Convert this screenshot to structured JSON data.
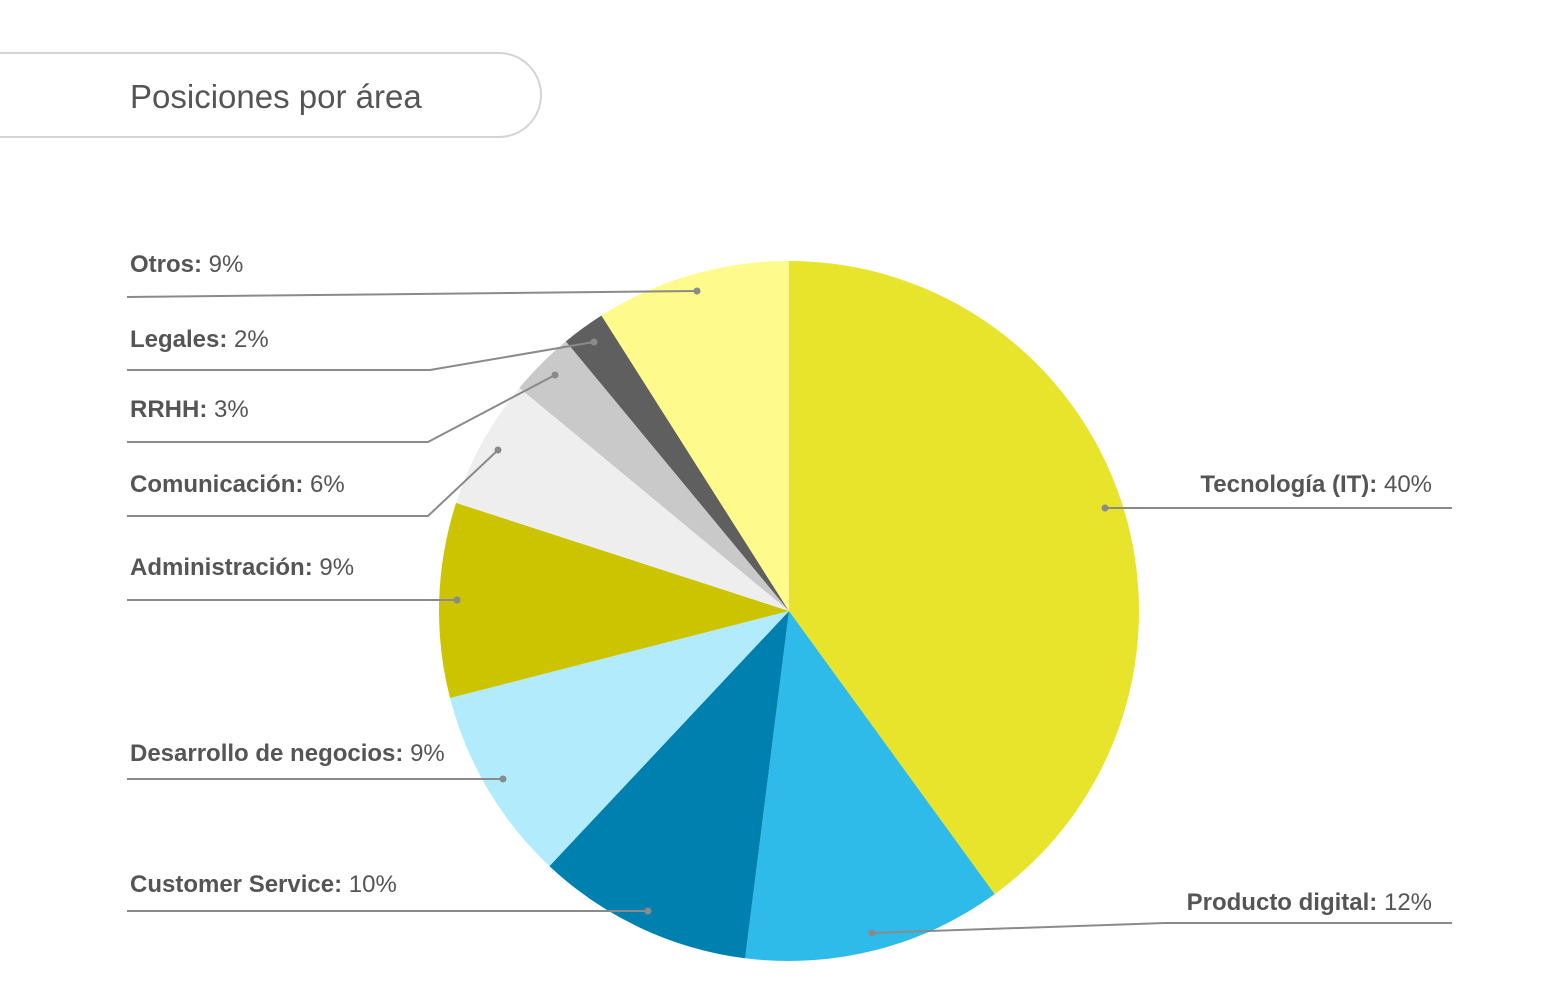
{
  "header": {
    "title": "Posiciones por área"
  },
  "chart_data": {
    "type": "pie",
    "title": "Posiciones por área",
    "legend": "none",
    "start": "top",
    "direction": "clockwise",
    "slices": [
      {
        "name": "Tecnología (IT)",
        "value_label": "40%",
        "value": 40,
        "color": "#e8e42c"
      },
      {
        "name": "Producto digital",
        "value_label": "12%",
        "value": 12,
        "color": "#2fbbe9"
      },
      {
        "name": "Customer Service",
        "value_label": "10%",
        "value": 10,
        "color": "#0080ae"
      },
      {
        "name": "Desarrollo de negocios",
        "value_label": "9%",
        "value": 9,
        "color": "#b2ebfb"
      },
      {
        "name": "Administración",
        "value_label": "9%",
        "value": 9,
        "color": "#ccc400"
      },
      {
        "name": "Comunicación",
        "value_label": "6%",
        "value": 6,
        "color": "#eeeeee"
      },
      {
        "name": "RRHH",
        "value_label": "3%",
        "value": 3,
        "color": "#c9c9c9"
      },
      {
        "name": "Legales",
        "value_label": "2%",
        "value": 2,
        "color": "#5f5f5f"
      },
      {
        "name": "Otros",
        "value_label": "9%",
        "value": 9,
        "color": "#fffa8c"
      }
    ]
  }
}
